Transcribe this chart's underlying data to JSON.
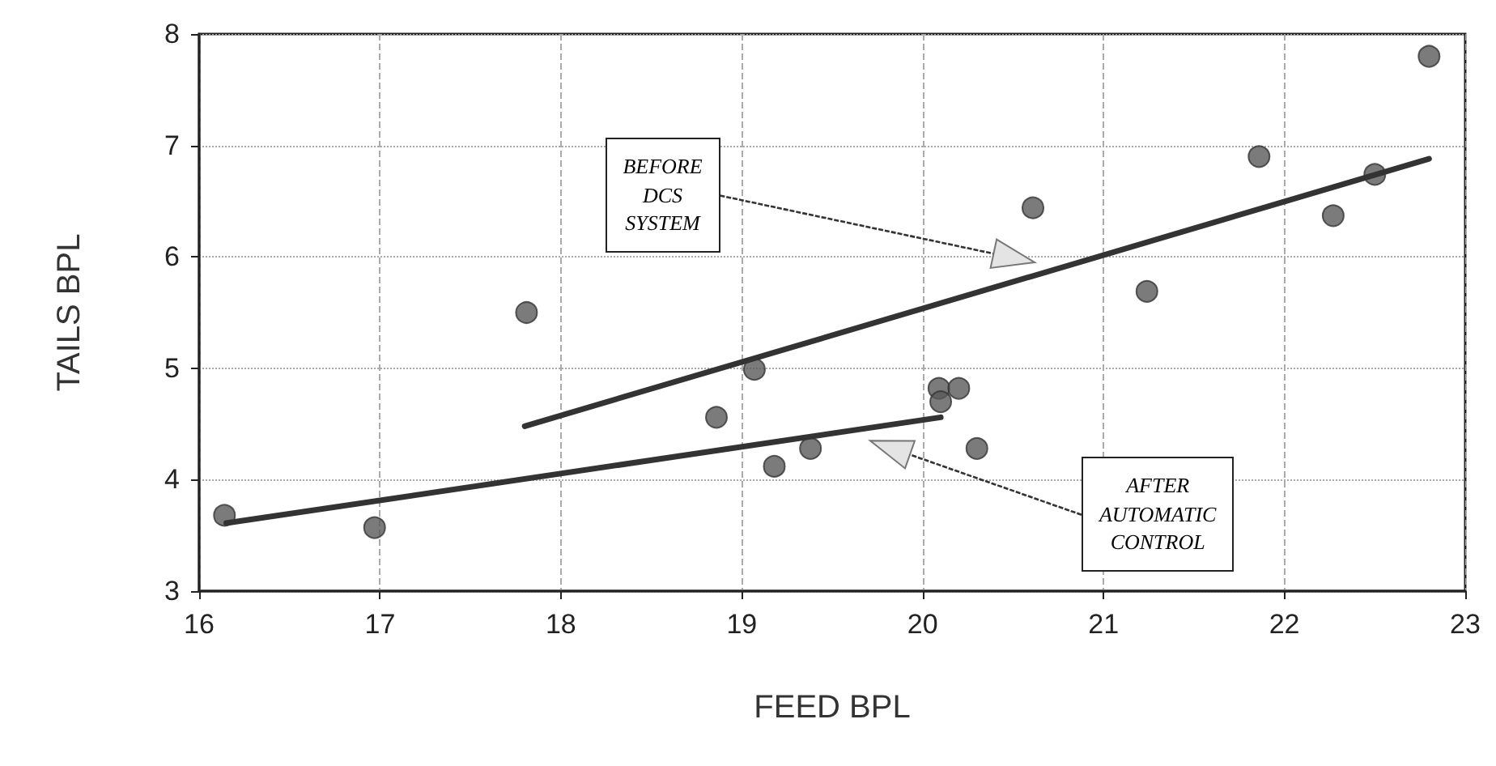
{
  "chart_data": {
    "type": "scatter",
    "xlabel": "FEED BPL",
    "ylabel": "TAILS BPL",
    "xlim": [
      16,
      23
    ],
    "xticks": [
      16,
      17,
      18,
      19,
      20,
      21,
      22,
      23
    ],
    "ylim": [
      3,
      8
    ],
    "yticks": [
      3,
      4,
      5,
      6,
      7,
      8
    ],
    "grid": true,
    "series": [
      {
        "marker": "circle",
        "color": "#5a5a5a",
        "x": [
          16.14,
          16.97,
          17.81,
          18.86,
          19.07,
          19.18,
          19.38,
          20.09,
          20.2,
          20.1,
          20.3,
          20.61,
          21.24,
          21.86,
          22.27,
          22.5,
          22.8
        ],
        "values": [
          3.68,
          3.57,
          5.5,
          4.56,
          4.99,
          4.12,
          4.28,
          4.82,
          4.82,
          4.7,
          4.28,
          6.44,
          5.69,
          6.9,
          6.37,
          6.74,
          7.8
        ]
      },
      {
        "type": "line",
        "marker": "none",
        "color": "#333333",
        "x": [
          17.8,
          22.8
        ],
        "values": [
          4.48,
          6.88
        ]
      },
      {
        "type": "line",
        "marker": "none",
        "color": "#333333",
        "x": [
          16.15,
          20.1
        ],
        "values": [
          3.61,
          4.56
        ]
      }
    ],
    "annotations": [
      "BEFORE\nDCS\nSYSTEM",
      "AFTER\nAUTOMATIC\nCONTROL"
    ]
  }
}
